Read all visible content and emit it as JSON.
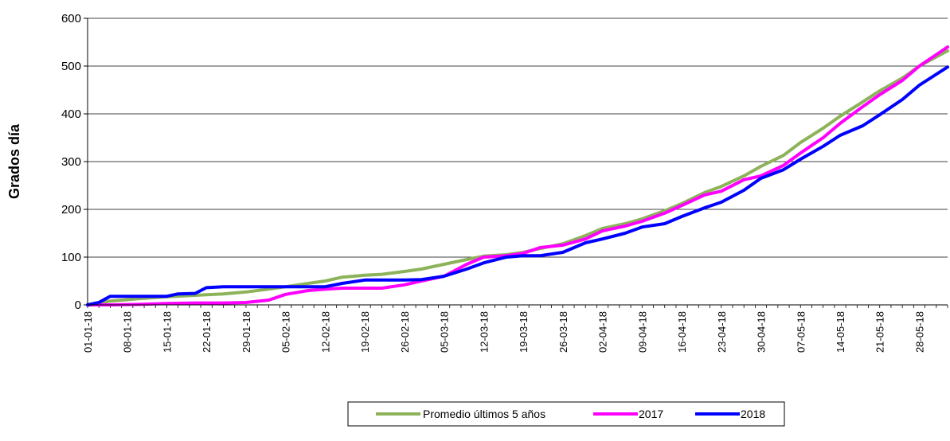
{
  "chart_data": {
    "type": "line",
    "title": "",
    "xlabel": "",
    "ylabel": "Grados día",
    "ylim": [
      0,
      600
    ],
    "yticks": [
      0,
      100,
      200,
      300,
      400,
      500,
      600
    ],
    "xrange": [
      "2018-01-01",
      "2018-06-02"
    ],
    "xtick_labels": [
      "01-01-18",
      "08-01-18",
      "15-01-18",
      "22-01-18",
      "29-01-18",
      "05-02-18",
      "12-02-18",
      "19-02-18",
      "26-02-18",
      "05-03-18",
      "12-03-18",
      "19-03-18",
      "26-03-18",
      "02-04-18",
      "09-04-18",
      "16-04-18",
      "23-04-18",
      "30-04-18",
      "07-05-18",
      "14-05-18",
      "21-05-18",
      "28-05-18"
    ],
    "grid": "horizontal",
    "legend_position": "bottom",
    "series": [
      {
        "name": "Promedio últimos 5 años",
        "color": "#8db35a",
        "points": [
          [
            "2018-01-01",
            0
          ],
          [
            "2018-01-05",
            8
          ],
          [
            "2018-01-10",
            13
          ],
          [
            "2018-01-15",
            17
          ],
          [
            "2018-01-20",
            20
          ],
          [
            "2018-01-25",
            23
          ],
          [
            "2018-01-29",
            27
          ],
          [
            "2018-02-02",
            33
          ],
          [
            "2018-02-05",
            38
          ],
          [
            "2018-02-09",
            45
          ],
          [
            "2018-02-12",
            50
          ],
          [
            "2018-02-15",
            58
          ],
          [
            "2018-02-19",
            62
          ],
          [
            "2018-02-22",
            64
          ],
          [
            "2018-02-26",
            70
          ],
          [
            "2018-03-01",
            75
          ],
          [
            "2018-03-05",
            85
          ],
          [
            "2018-03-09",
            95
          ],
          [
            "2018-03-12",
            102
          ],
          [
            "2018-03-16",
            105
          ],
          [
            "2018-03-19",
            110
          ],
          [
            "2018-03-22",
            118
          ],
          [
            "2018-03-26",
            128
          ],
          [
            "2018-03-30",
            145
          ],
          [
            "2018-04-02",
            160
          ],
          [
            "2018-04-06",
            170
          ],
          [
            "2018-04-09",
            180
          ],
          [
            "2018-04-13",
            197
          ],
          [
            "2018-04-16",
            212
          ],
          [
            "2018-04-20",
            235
          ],
          [
            "2018-04-23",
            248
          ],
          [
            "2018-04-27",
            270
          ],
          [
            "2018-04-30",
            290
          ],
          [
            "2018-05-04",
            313
          ],
          [
            "2018-05-07",
            340
          ],
          [
            "2018-05-11",
            370
          ],
          [
            "2018-05-14",
            395
          ],
          [
            "2018-05-18",
            425
          ],
          [
            "2018-05-21",
            448
          ],
          [
            "2018-05-25",
            475
          ],
          [
            "2018-05-28",
            500
          ],
          [
            "2018-06-02",
            532
          ]
        ]
      },
      {
        "name": "2017",
        "color": "#ff00ff",
        "points": [
          [
            "2018-01-01",
            0
          ],
          [
            "2018-01-05",
            0
          ],
          [
            "2018-01-10",
            1
          ],
          [
            "2018-01-15",
            3
          ],
          [
            "2018-01-20",
            4
          ],
          [
            "2018-01-25",
            4
          ],
          [
            "2018-01-29",
            5
          ],
          [
            "2018-02-02",
            10
          ],
          [
            "2018-02-05",
            22
          ],
          [
            "2018-02-09",
            30
          ],
          [
            "2018-02-12",
            33
          ],
          [
            "2018-02-15",
            35
          ],
          [
            "2018-02-19",
            35
          ],
          [
            "2018-02-22",
            35
          ],
          [
            "2018-02-26",
            42
          ],
          [
            "2018-03-01",
            50
          ],
          [
            "2018-03-05",
            60
          ],
          [
            "2018-03-09",
            85
          ],
          [
            "2018-03-12",
            100
          ],
          [
            "2018-03-16",
            103
          ],
          [
            "2018-03-19",
            108
          ],
          [
            "2018-03-22",
            120
          ],
          [
            "2018-03-26",
            125
          ],
          [
            "2018-03-30",
            138
          ],
          [
            "2018-04-02",
            155
          ],
          [
            "2018-04-06",
            165
          ],
          [
            "2018-04-09",
            175
          ],
          [
            "2018-04-13",
            192
          ],
          [
            "2018-04-16",
            208
          ],
          [
            "2018-04-20",
            230
          ],
          [
            "2018-04-23",
            238
          ],
          [
            "2018-04-27",
            262
          ],
          [
            "2018-04-30",
            270
          ],
          [
            "2018-05-04",
            292
          ],
          [
            "2018-05-07",
            318
          ],
          [
            "2018-05-11",
            350
          ],
          [
            "2018-05-14",
            380
          ],
          [
            "2018-05-18",
            415
          ],
          [
            "2018-05-21",
            440
          ],
          [
            "2018-05-25",
            470
          ],
          [
            "2018-05-28",
            500
          ],
          [
            "2018-06-02",
            540
          ]
        ]
      },
      {
        "name": "2018",
        "color": "#0000ff",
        "points": [
          [
            "2018-01-01",
            0
          ],
          [
            "2018-01-03",
            5
          ],
          [
            "2018-01-05",
            18
          ],
          [
            "2018-01-10",
            18
          ],
          [
            "2018-01-15",
            18
          ],
          [
            "2018-01-17",
            23
          ],
          [
            "2018-01-20",
            24
          ],
          [
            "2018-01-22",
            36
          ],
          [
            "2018-01-25",
            38
          ],
          [
            "2018-01-29",
            38
          ],
          [
            "2018-02-02",
            38
          ],
          [
            "2018-02-05",
            38
          ],
          [
            "2018-02-09",
            38
          ],
          [
            "2018-02-12",
            38
          ],
          [
            "2018-02-15",
            45
          ],
          [
            "2018-02-19",
            52
          ],
          [
            "2018-02-22",
            52
          ],
          [
            "2018-02-26",
            52
          ],
          [
            "2018-03-01",
            53
          ],
          [
            "2018-03-05",
            60
          ],
          [
            "2018-03-09",
            75
          ],
          [
            "2018-03-12",
            88
          ],
          [
            "2018-03-16",
            100
          ],
          [
            "2018-03-19",
            103
          ],
          [
            "2018-03-22",
            103
          ],
          [
            "2018-03-26",
            110
          ],
          [
            "2018-03-30",
            130
          ],
          [
            "2018-04-02",
            138
          ],
          [
            "2018-04-06",
            150
          ],
          [
            "2018-04-09",
            163
          ],
          [
            "2018-04-13",
            170
          ],
          [
            "2018-04-16",
            185
          ],
          [
            "2018-04-20",
            203
          ],
          [
            "2018-04-23",
            215
          ],
          [
            "2018-04-27",
            240
          ],
          [
            "2018-04-30",
            265
          ],
          [
            "2018-05-04",
            283
          ],
          [
            "2018-05-07",
            305
          ],
          [
            "2018-05-11",
            332
          ],
          [
            "2018-05-14",
            355
          ],
          [
            "2018-05-18",
            375
          ],
          [
            "2018-05-21",
            398
          ],
          [
            "2018-05-25",
            430
          ],
          [
            "2018-05-28",
            460
          ],
          [
            "2018-06-02",
            498
          ]
        ]
      }
    ]
  }
}
